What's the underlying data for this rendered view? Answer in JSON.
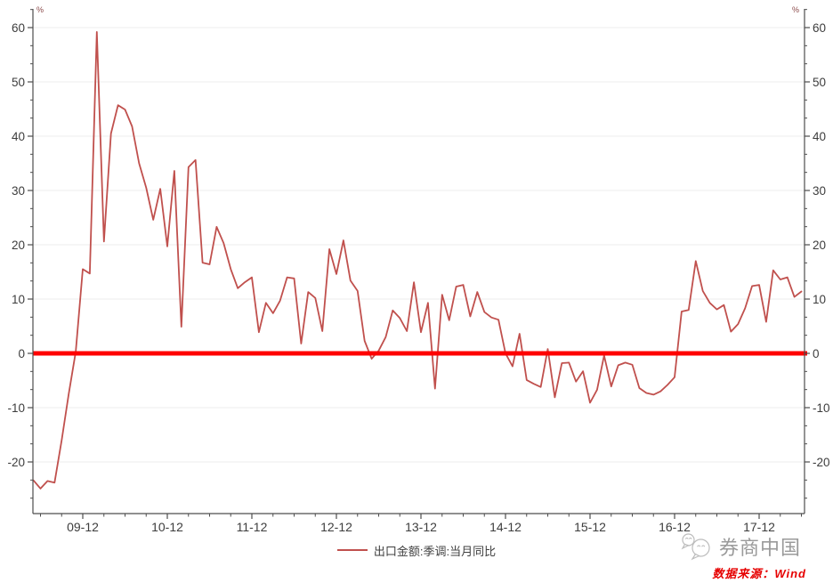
{
  "page": {
    "background": "#ffffff"
  },
  "chart": {
    "colors": {
      "series": "#C0504D",
      "zero_line": "#FF0000",
      "grid": "#ECECEC",
      "axis": "#4d4d4d",
      "label": "#3d3d3d",
      "unit_text": "#8B4A4A",
      "legend_text": "#3f3f3f",
      "brand_text": "#9a9a9a",
      "source_text": "#E60000"
    },
    "legend_label": "出口金额:季调:当月同比",
    "watermark_brand": "券商中国",
    "source_note": "数据来源：Wind"
  },
  "chart_data": {
    "type": "line",
    "title": "",
    "y_unit": "%",
    "ylabel": "",
    "xlabel": "",
    "y_ticks": [
      -20,
      -10,
      0,
      10,
      20,
      30,
      40,
      50,
      60
    ],
    "ylim": [
      -29.5,
      63.5
    ],
    "grid": "horizontal",
    "legend_position": "bottom-center",
    "zero_line": {
      "value": 0,
      "width": 5
    },
    "x_tick_labels": [
      "09-12",
      "10-12",
      "11-12",
      "12-12",
      "13-12",
      "14-12",
      "15-12",
      "16-12",
      "17-12"
    ],
    "x": [
      "2009-05",
      "2009-06",
      "2009-07",
      "2009-08",
      "2009-09",
      "2009-10",
      "2009-11",
      "2009-12",
      "2010-01",
      "2010-02",
      "2010-03",
      "2010-04",
      "2010-05",
      "2010-06",
      "2010-07",
      "2010-08",
      "2010-09",
      "2010-10",
      "2010-11",
      "2010-12",
      "2011-01",
      "2011-02",
      "2011-03",
      "2011-04",
      "2011-05",
      "2011-06",
      "2011-07",
      "2011-08",
      "2011-09",
      "2011-10",
      "2011-11",
      "2011-12",
      "2012-01",
      "2012-02",
      "2012-03",
      "2012-04",
      "2012-05",
      "2012-06",
      "2012-07",
      "2012-08",
      "2012-09",
      "2012-10",
      "2012-11",
      "2012-12",
      "2013-01",
      "2013-02",
      "2013-03",
      "2013-04",
      "2013-05",
      "2013-06",
      "2013-07",
      "2013-08",
      "2013-09",
      "2013-10",
      "2013-11",
      "2013-12",
      "2014-01",
      "2014-02",
      "2014-03",
      "2014-04",
      "2014-05",
      "2014-06",
      "2014-07",
      "2014-08",
      "2014-09",
      "2014-10",
      "2014-11",
      "2014-12",
      "2015-01",
      "2015-02",
      "2015-03",
      "2015-04",
      "2015-05",
      "2015-06",
      "2015-07",
      "2015-08",
      "2015-09",
      "2015-10",
      "2015-11",
      "2015-12",
      "2016-01",
      "2016-02",
      "2016-03",
      "2016-04",
      "2016-05",
      "2016-06",
      "2016-07",
      "2016-08",
      "2016-09",
      "2016-10",
      "2016-11",
      "2016-12",
      "2017-01",
      "2017-02",
      "2017-03",
      "2017-04",
      "2017-05",
      "2017-06",
      "2017-07",
      "2017-08",
      "2017-09",
      "2017-10",
      "2017-11",
      "2017-12",
      "2018-01",
      "2018-02",
      "2018-03",
      "2018-04",
      "2018-05",
      "2018-06"
    ],
    "series": [
      {
        "name": "出口金额:季调:当月同比",
        "color": "#C0504D",
        "values": [
          -23.4,
          -24.9,
          -23.5,
          -23.8,
          -16.0,
          -7.5,
          0.3,
          15.5,
          14.7,
          59.2,
          20.6,
          40.5,
          45.7,
          44.9,
          41.8,
          35.0,
          30.5,
          24.6,
          30.3,
          19.7,
          33.6,
          4.9,
          34.3,
          35.6,
          16.7,
          16.4,
          23.3,
          20.3,
          15.5,
          12.0,
          13.1,
          14.0,
          3.9,
          9.3,
          7.4,
          9.7,
          14.0,
          13.8,
          1.8,
          11.3,
          10.2,
          4.1,
          19.2,
          14.6,
          20.8,
          13.4,
          11.5,
          2.3,
          -1.0,
          0.5,
          3.0,
          7.9,
          6.5,
          4.1,
          13.1,
          3.9,
          9.3,
          -6.5,
          10.8,
          6.1,
          12.3,
          12.6,
          6.8,
          11.3,
          7.6,
          6.6,
          6.2,
          0.0,
          -2.4,
          3.6,
          -4.9,
          -5.6,
          -6.2,
          0.8,
          -8.1,
          -1.8,
          -1.7,
          -5.2,
          -3.3,
          -9.1,
          -6.7,
          -0.4,
          -6.1,
          -2.2,
          -1.7,
          -2.1,
          -6.4,
          -7.3,
          -7.6,
          -7.0,
          -5.8,
          -4.4,
          7.7,
          8.0,
          17.0,
          11.5,
          9.3,
          8.1,
          8.9,
          4.0,
          5.4,
          8.3,
          12.4,
          12.6,
          5.8,
          15.3,
          13.6,
          14.0,
          10.4,
          11.4
        ]
      }
    ]
  }
}
